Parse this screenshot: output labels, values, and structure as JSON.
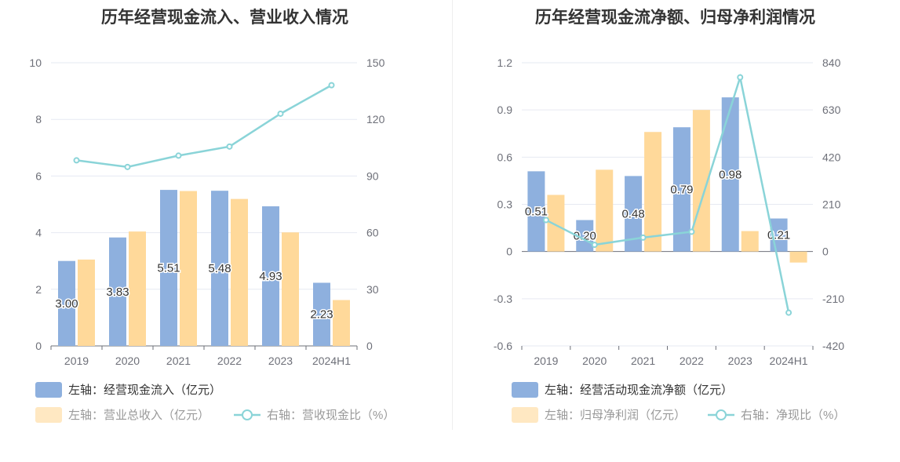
{
  "colors": {
    "bar_primary": "#8eb0de",
    "bar_secondary": "#ffd99a",
    "line": "#8ad4d8",
    "grid": "#e6e9f2",
    "axis": "#6e7079",
    "legend_text_primary": "#333333",
    "legend_text_secondary": "#999999",
    "legend_bar_secondary_swatch": "#ffe8c2"
  },
  "chart_data": [
    {
      "type": "bar",
      "title": "历年经营现金流入、营业收入情况",
      "categories": [
        "2019",
        "2020",
        "2021",
        "2022",
        "2023",
        "2024H1"
      ],
      "left_axis": {
        "min": 0,
        "max": 10,
        "ticks": [
          "0",
          "2",
          "4",
          "6",
          "8",
          "10"
        ]
      },
      "right_axis": {
        "min": 0,
        "max": 150,
        "ticks": [
          "0",
          "30",
          "60",
          "90",
          "120",
          "150"
        ]
      },
      "series": [
        {
          "name": "左轴：经营现金流入（亿元）",
          "kind": "bar",
          "axis": "left",
          "values": [
            3.0,
            3.83,
            5.51,
            5.48,
            4.93,
            2.23
          ],
          "labels": [
            "3.00",
            "3.83",
            "5.51",
            "5.48",
            "4.93",
            "2.23"
          ]
        },
        {
          "name": "左轴：营业总收入（亿元）",
          "kind": "bar",
          "axis": "left",
          "values": [
            3.05,
            4.04,
            5.47,
            5.19,
            4.01,
            1.62
          ]
        },
        {
          "name": "右轴：营收现金比（%）",
          "kind": "line",
          "axis": "right",
          "values": [
            98.3,
            94.8,
            100.8,
            105.6,
            123.0,
            138.1
          ]
        }
      ],
      "grid": true,
      "legend_position": "bottom"
    },
    {
      "type": "bar",
      "title": "历年经营现金流净额、归母净利润情况",
      "categories": [
        "2019",
        "2020",
        "2021",
        "2022",
        "2023",
        "2024H1"
      ],
      "left_axis": {
        "min": -0.6,
        "max": 1.2,
        "ticks": [
          "-0.6",
          "-0.3",
          "0",
          "0.3",
          "0.6",
          "0.9",
          "1.2"
        ]
      },
      "right_axis": {
        "min": -420,
        "max": 840,
        "ticks": [
          "-420",
          "-210",
          "0",
          "210",
          "420",
          "630",
          "840"
        ]
      },
      "series": [
        {
          "name": "左轴：经营活动现金流净额（亿元）",
          "kind": "bar",
          "axis": "left",
          "values": [
            0.51,
            0.2,
            0.48,
            0.79,
            0.98,
            0.21
          ],
          "labels": [
            "0.51",
            "0.20",
            "0.48",
            "0.79",
            "0.98",
            "0.21"
          ]
        },
        {
          "name": "左轴：归母净利润（亿元）",
          "kind": "bar",
          "axis": "left",
          "values": [
            0.36,
            0.52,
            0.76,
            0.9,
            0.13,
            -0.07
          ]
        },
        {
          "name": "右轴：净现比（%）",
          "kind": "line",
          "axis": "right",
          "values": [
            140,
            30,
            62,
            88,
            775,
            -272
          ]
        }
      ],
      "grid": true,
      "legend_position": "bottom"
    }
  ]
}
